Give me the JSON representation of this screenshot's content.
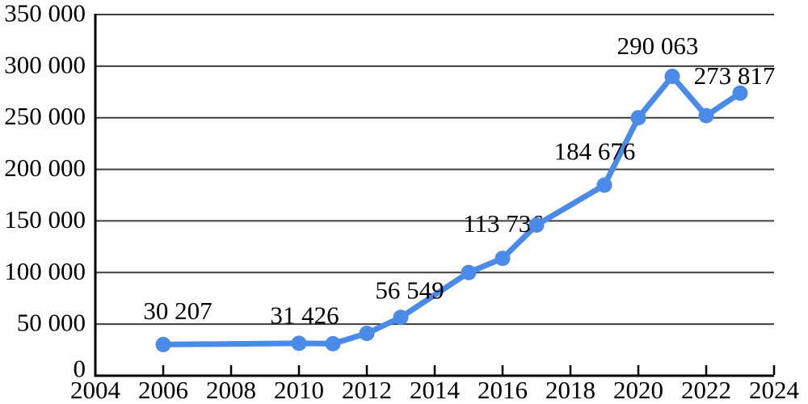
{
  "style": {
    "background": "#ffffff",
    "line_color": "#4a8be9",
    "marker_color": "#4a8be9",
    "grid_color": "#3d3d3d",
    "axis_color": "#000000",
    "text_color": "#000000"
  },
  "chart_data": {
    "type": "line",
    "title": "",
    "xlabel": "",
    "ylabel": "",
    "xlim": [
      2004,
      2024
    ],
    "ylim": [
      0,
      350000
    ],
    "grid": "horizontal",
    "legend": "none",
    "x_ticks": [
      {
        "value": 2004,
        "label": "2004"
      },
      {
        "value": 2006,
        "label": "2006"
      },
      {
        "value": 2008,
        "label": "2008"
      },
      {
        "value": 2010,
        "label": "2010"
      },
      {
        "value": 2012,
        "label": "2012"
      },
      {
        "value": 2014,
        "label": "2014"
      },
      {
        "value": 2016,
        "label": "2016"
      },
      {
        "value": 2018,
        "label": "2018"
      },
      {
        "value": 2020,
        "label": "2020"
      },
      {
        "value": 2022,
        "label": "2022"
      },
      {
        "value": 2024,
        "label": "2024"
      }
    ],
    "y_ticks": [
      {
        "value": 0,
        "label": "0"
      },
      {
        "value": 50000,
        "label": "50 000"
      },
      {
        "value": 100000,
        "label": "100 000"
      },
      {
        "value": 150000,
        "label": "150 000"
      },
      {
        "value": 200000,
        "label": "200 000"
      },
      {
        "value": 250000,
        "label": "250 000"
      },
      {
        "value": 300000,
        "label": "300 000"
      },
      {
        "value": 350000,
        "label": "350 000"
      }
    ],
    "series": [
      {
        "name": "annual-count",
        "color": "#4a8be9",
        "points": [
          {
            "x": 2006,
            "y": 30207,
            "label": "30 207",
            "label_dx": 18,
            "label_dy": -42
          },
          {
            "x": 2010,
            "y": 31426,
            "label": "31 426",
            "label_dx": 7,
            "label_dy": -35
          },
          {
            "x": 2011,
            "y": 31000
          },
          {
            "x": 2012,
            "y": 41000
          },
          {
            "x": 2013,
            "y": 56549,
            "label": "56 549",
            "label_dx": 11,
            "label_dy": -34
          },
          {
            "x": 2015,
            "y": 100000
          },
          {
            "x": 2016,
            "y": 113736,
            "label": "113 736",
            "label_dx": 1,
            "label_dy": -43
          },
          {
            "x": 2017,
            "y": 146000
          },
          {
            "x": 2019,
            "y": 184676,
            "label": "184 676",
            "label_dx": -12,
            "label_dy": -42
          },
          {
            "x": 2020,
            "y": 250000
          },
          {
            "x": 2021,
            "y": 290063,
            "label": "290 063",
            "label_dx": -18,
            "label_dy": -38
          },
          {
            "x": 2022,
            "y": 252000
          },
          {
            "x": 2023,
            "y": 273817,
            "label": "273 817",
            "label_dx": -7,
            "label_dy": -22
          }
        ]
      }
    ]
  }
}
